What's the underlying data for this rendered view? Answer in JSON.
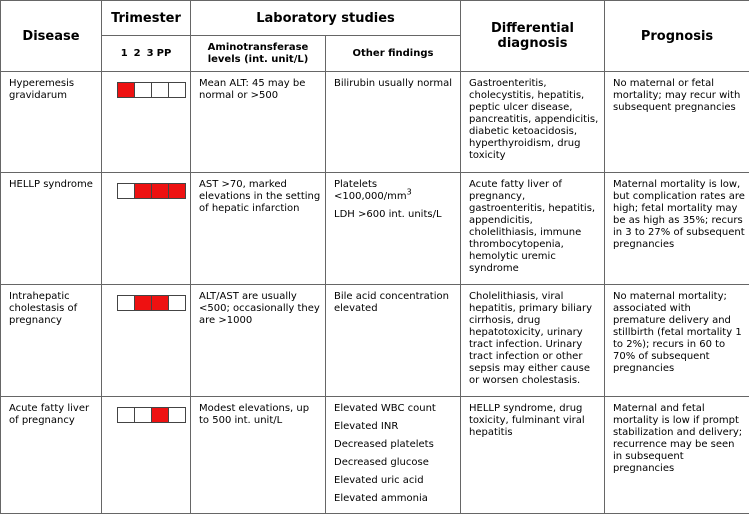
{
  "headers": {
    "disease": "Disease",
    "trimester": "Trimester",
    "trimester_labels": [
      "1",
      "2",
      "3",
      "PP"
    ],
    "lab_studies": "Laboratory studies",
    "aminotransferase": "Aminotransferase levels (int. unit/L)",
    "other_findings": "Other findings",
    "differential": "Differential diagnosis",
    "prognosis": "Prognosis"
  },
  "rows": [
    {
      "disease": "Hyperemesis gravidarum",
      "trimester": [
        true,
        false,
        false,
        false
      ],
      "aminotransferase": "Mean ALT: 45 may be normal or >500",
      "other": [
        "Bilirubin usually normal"
      ],
      "differential": "Gastroenteritis, cholecystitis, hepatitis, peptic ulcer disease, pancreatitis, appendicitis, diabetic ketoacidosis, hyperthyroidism, drug toxicity",
      "prognosis": "No maternal or fetal mortality; may recur with subsequent pregnancies"
    },
    {
      "disease": "HELLP syndrome",
      "trimester": [
        false,
        true,
        true,
        true
      ],
      "aminotransferase": "AST >70, marked elevations in the setting of hepatic infarction",
      "other": [
        "Platelets <100,000/mm",
        "LDH >600 int. units/L"
      ],
      "other_sup": "3",
      "differential": "Acute fatty liver of pregnancy, gastroenteritis, hepatitis, appendicitis, cholelithiasis, immune thrombocytopenia, hemolytic uremic syndrome",
      "prognosis": "Maternal mortality is low, but complication rates are high; fetal mortality may be as high as 35%; recurs in 3 to 27% of subsequent pregnancies"
    },
    {
      "disease": "Intrahepatic cholestasis of pregnancy",
      "trimester": [
        false,
        true,
        true,
        false
      ],
      "aminotransferase": "ALT/AST are usually <500; occasionally they are >1000",
      "other": [
        "Bile acid concentration elevated"
      ],
      "differential": "Cholelithiasis, viral hepatitis, primary biliary cirrhosis, drug hepatotoxicity, urinary tract infection. Urinary tract infection or other sepsis may either cause or worsen cholestasis.",
      "prognosis": "No maternal mortality; associated with premature delivery and stillbirth (fetal mortality 1 to 2%); recurs in 60 to 70% of subsequent pregnancies"
    },
    {
      "disease": "Acute fatty liver of pregnancy",
      "trimester": [
        false,
        false,
        true,
        false
      ],
      "aminotransferase": "Modest elevations, up to 500 int. unit/L",
      "other": [
        "Elevated WBC count",
        "Elevated INR",
        "Decreased platelets",
        "Decreased glucose",
        "Elevated uric acid",
        "Elevated ammonia"
      ],
      "differential": "HELLP syndrome, drug toxicity, fulminant viral hepatitis",
      "prognosis": "Maternal and fetal mortality is low if prompt stabilization and delivery; recurrence may be seen in subsequent pregnancies"
    }
  ],
  "colors": {
    "active": "#ee1111",
    "border": "#666666"
  }
}
